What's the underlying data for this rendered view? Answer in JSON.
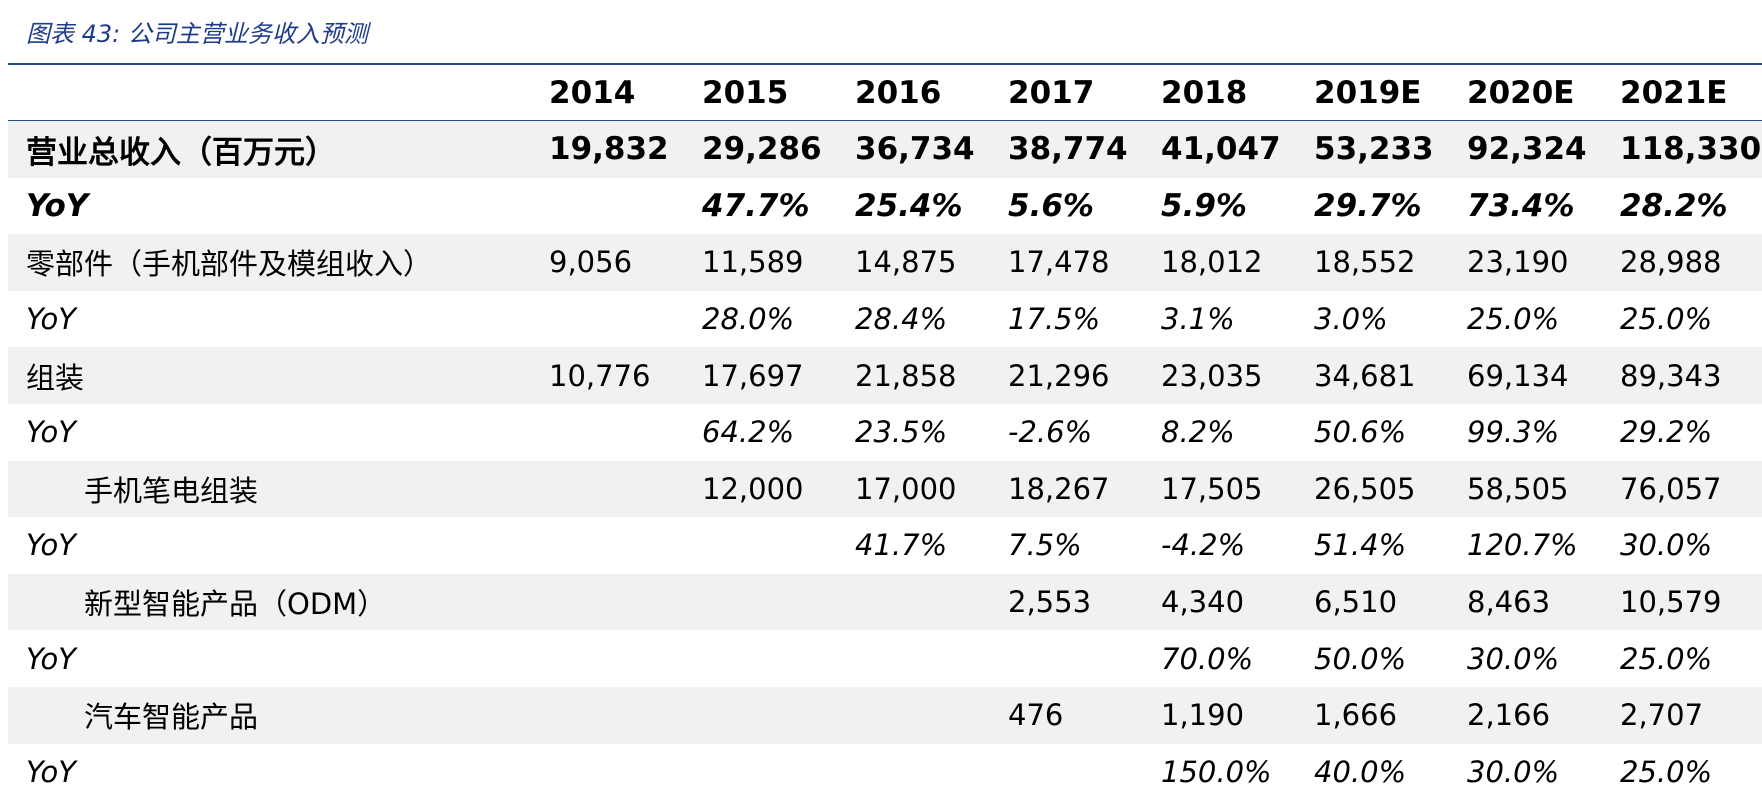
{
  "caption": "图表 43: 公司主营业务收入预测",
  "table": {
    "header": [
      "",
      "2014",
      "2015",
      "2016",
      "2017",
      "2018",
      "2019E",
      "2020E",
      "2021E"
    ],
    "rows": [
      {
        "label": "营业总收入（百万元）",
        "cells": [
          "19,832",
          "29,286",
          "36,734",
          "38,774",
          "41,047",
          "53,233",
          "92,324",
          "118,330"
        ]
      },
      {
        "label": "YoY",
        "cells": [
          "",
          "47.7%",
          "25.4%",
          "5.6%",
          "5.9%",
          "29.7%",
          "73.4%",
          "28.2%"
        ]
      },
      {
        "label": "零部件（手机部件及模组收入）",
        "cells": [
          "9,056",
          "11,589",
          "14,875",
          "17,478",
          "18,012",
          "18,552",
          "23,190",
          "28,988"
        ]
      },
      {
        "label": "YoY",
        "cells": [
          "",
          "28.0%",
          "28.4%",
          "17.5%",
          "3.1%",
          "3.0%",
          "25.0%",
          "25.0%"
        ]
      },
      {
        "label": "组装",
        "cells": [
          "10,776",
          "17,697",
          "21,858",
          "21,296",
          "23,035",
          "34,681",
          "69,134",
          "89,343"
        ]
      },
      {
        "label": "YoY",
        "cells": [
          "",
          "64.2%",
          "23.5%",
          "-2.6%",
          "8.2%",
          "50.6%",
          "99.3%",
          "29.2%"
        ]
      },
      {
        "label": "手机笔电组装",
        "cells": [
          "",
          "12,000",
          "17,000",
          "18,267",
          "17,505",
          "26,505",
          "58,505",
          "76,057"
        ]
      },
      {
        "label": "YoY",
        "cells": [
          "",
          "",
          "41.7%",
          "7.5%",
          "-4.2%",
          "51.4%",
          "120.7%",
          "30.0%"
        ]
      },
      {
        "label": "新型智能产品（ODM）",
        "cells": [
          "",
          "",
          "",
          "2,553",
          "4,340",
          "6,510",
          "8,463",
          "10,579"
        ]
      },
      {
        "label": "YoY",
        "cells": [
          "",
          "",
          "",
          "",
          "70.0%",
          "50.0%",
          "30.0%",
          "25.0%"
        ]
      },
      {
        "label": "汽车智能产品",
        "cells": [
          "",
          "",
          "",
          "476",
          "1,190",
          "1,666",
          "2,166",
          "2,707"
        ]
      },
      {
        "label": "YoY",
        "cells": [
          "",
          "",
          "",
          "",
          "150.0%",
          "40.0%",
          "30.0%",
          "25.0%"
        ]
      }
    ]
  }
}
